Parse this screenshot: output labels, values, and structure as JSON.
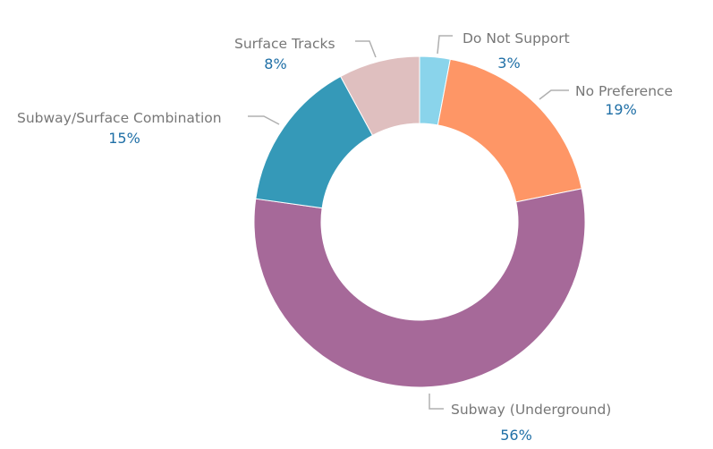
{
  "chart_data": {
    "type": "pie",
    "variant": "donut",
    "title": "",
    "legend": "none (data labels with leader lines)",
    "start_angle": "12 o'clock, clockwise",
    "slices": [
      {
        "label": "Do Not Support",
        "value": 3,
        "display": "3%",
        "color": "#8AD4EB"
      },
      {
        "label": "No Preference",
        "value": 19,
        "display": "19%",
        "color": "#FE9666"
      },
      {
        "label": "Subway (Underground)",
        "value": 56,
        "display": "56%",
        "color": "#A66999"
      },
      {
        "label": "Subway/Surface Combination",
        "value": 15,
        "display": "15%",
        "color": "#3599B8"
      },
      {
        "label": "Surface Tracks",
        "value": 8,
        "display": "8%",
        "color": "#DFBFBF"
      }
    ]
  },
  "labels": {
    "do_not_support": {
      "name": "Do Not Support",
      "pct": "3%"
    },
    "no_preference": {
      "name": "No Preference",
      "pct": "19%"
    },
    "subway": {
      "name": "Subway (Underground)",
      "pct": "56%"
    },
    "combo": {
      "name": "Subway/Surface Combination",
      "pct": "15%"
    },
    "surface": {
      "name": "Surface Tracks",
      "pct": "8%"
    }
  }
}
